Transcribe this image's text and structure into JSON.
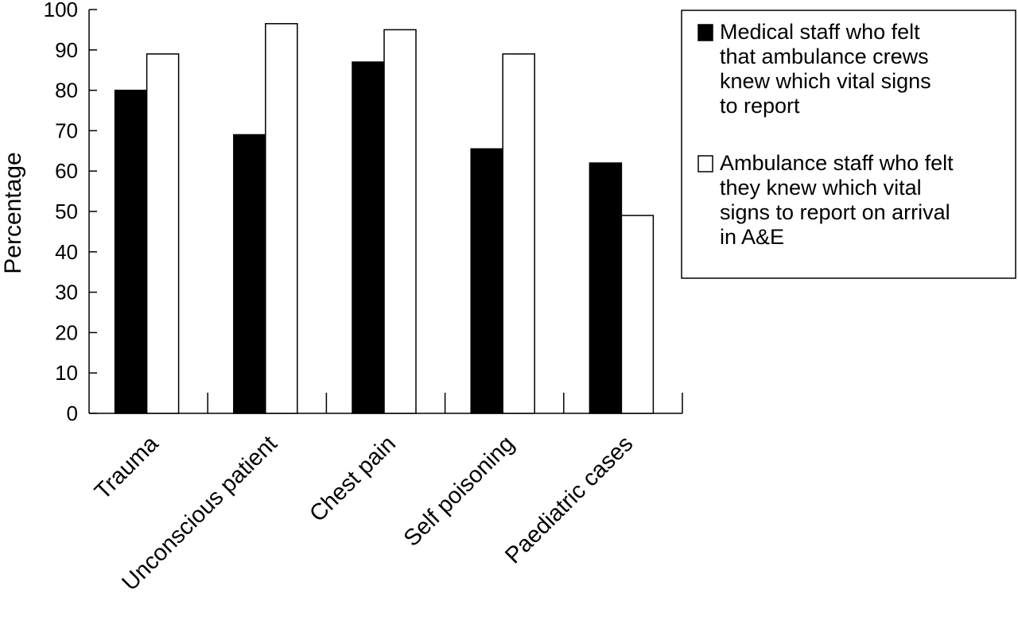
{
  "chart_data": {
    "type": "bar",
    "title": "",
    "xlabel": "",
    "ylabel": "Percentage",
    "ylim": [
      0,
      100
    ],
    "yticks": [
      0,
      10,
      20,
      30,
      40,
      50,
      60,
      70,
      80,
      90,
      100
    ],
    "categories": [
      "Trauma",
      "Unconscious patient",
      "Chest pain",
      "Self poisoning",
      "Paediatric cases"
    ],
    "series": [
      {
        "name": "Medical staff who felt that ambulance crews knew which vital signs to report",
        "legend_lines": [
          "Medical staff who felt",
          "that ambulance crews",
          "knew which vital signs",
          "to report"
        ],
        "color": "#000000",
        "values": [
          80,
          69,
          87,
          65.5,
          62
        ]
      },
      {
        "name": "Ambulance staff who felt they knew which vital signs to report on arrival in A&E",
        "legend_lines": [
          "Ambulance staff who felt",
          "they knew which vital",
          "signs to report on arrival",
          "in A&E"
        ],
        "color": "#ffffff",
        "values": [
          89,
          96.5,
          95,
          89,
          49
        ]
      }
    ],
    "legend_position": "top-right",
    "grid": false
  }
}
